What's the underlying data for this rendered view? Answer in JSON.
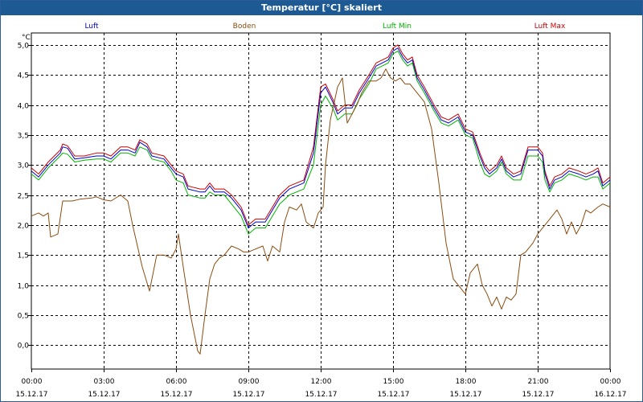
{
  "window": {
    "title": "Temperatur [°C] skaliert"
  },
  "chart_data": {
    "type": "line",
    "title": "Temperatur [°C] skaliert",
    "ylabel": "°C",
    "xlabel": "",
    "ylim": [
      -0.4,
      5.2
    ],
    "xlim": [
      0,
      24
    ],
    "grid": true,
    "y_ticks": [
      "5,0",
      "4,5",
      "4,0",
      "3,5",
      "3,0",
      "2,5",
      "2,0",
      "1,5",
      "1,0",
      "0,5",
      "0,0"
    ],
    "y_tick_values": [
      5.0,
      4.5,
      4.0,
      3.5,
      3.0,
      2.5,
      2.0,
      1.5,
      1.0,
      0.5,
      0.0
    ],
    "x_ticks": [
      {
        "time": "00:00",
        "date": "15.12.17"
      },
      {
        "time": "03:00",
        "date": "15.12.17"
      },
      {
        "time": "06:00",
        "date": "15.12.17"
      },
      {
        "time": "09:00",
        "date": "15.12.17"
      },
      {
        "time": "12:00",
        "date": "15.12.17"
      },
      {
        "time": "15:00",
        "date": "15.12.17"
      },
      {
        "time": "18:00",
        "date": "15.12.17"
      },
      {
        "time": "21:00",
        "date": "15.12.17"
      },
      {
        "time": "00:00",
        "date": "16.12.17"
      }
    ],
    "x_tick_values": [
      0,
      3,
      6,
      9,
      12,
      15,
      18,
      21,
      24
    ],
    "legend": [
      "Luft",
      "Boden",
      "Luft Min",
      "Luft Max"
    ],
    "series": [
      {
        "name": "Luft Max",
        "color": "#cc0000",
        "x": [
          0,
          0.3,
          0.7,
          1.2,
          1.3,
          1.5,
          1.8,
          2.2,
          2.7,
          3.0,
          3.3,
          3.7,
          4.0,
          4.3,
          4.5,
          4.8,
          5.0,
          5.5,
          5.8,
          6.0,
          6.3,
          6.5,
          7.0,
          7.2,
          7.4,
          7.6,
          8.0,
          8.3,
          8.7,
          9.0,
          9.3,
          9.7,
          10.3,
          10.7,
          11.3,
          11.7,
          12.0,
          12.2,
          12.5,
          12.7,
          13.0,
          13.3,
          13.6,
          14.0,
          14.3,
          14.8,
          15.0,
          15.2,
          15.4,
          15.6,
          15.8,
          16.0,
          16.3,
          16.7,
          17.0,
          17.3,
          17.7,
          18.0,
          18.3,
          18.6,
          18.8,
          19.0,
          19.3,
          19.5,
          19.7,
          20.0,
          20.3,
          20.6,
          21.0,
          21.2,
          21.3,
          21.5,
          21.7,
          22.0,
          22.3,
          22.7,
          23.0,
          23.3,
          23.5,
          23.7,
          24.0
        ],
        "values": [
          2.95,
          2.85,
          3.05,
          3.25,
          3.35,
          3.32,
          3.15,
          3.15,
          3.2,
          3.2,
          3.15,
          3.3,
          3.3,
          3.25,
          3.42,
          3.35,
          3.2,
          3.15,
          3.0,
          2.9,
          2.85,
          2.65,
          2.6,
          2.6,
          2.7,
          2.6,
          2.6,
          2.5,
          2.3,
          2.0,
          2.1,
          2.1,
          2.5,
          2.65,
          2.75,
          3.3,
          4.3,
          4.35,
          4.1,
          3.9,
          4.0,
          4.0,
          4.25,
          4.5,
          4.7,
          4.8,
          4.95,
          5.0,
          4.85,
          4.75,
          4.8,
          4.5,
          4.3,
          4.0,
          3.8,
          3.75,
          3.85,
          3.6,
          3.55,
          3.2,
          3.0,
          2.9,
          3.0,
          3.15,
          2.95,
          2.85,
          2.9,
          3.3,
          3.3,
          3.2,
          2.9,
          2.65,
          2.8,
          2.85,
          2.95,
          2.9,
          2.85,
          2.9,
          2.95,
          2.7,
          2.8
        ]
      },
      {
        "name": "Luft",
        "color": "#0000cc",
        "x": [
          0,
          0.3,
          0.7,
          1.2,
          1.3,
          1.5,
          1.8,
          2.2,
          2.7,
          3.0,
          3.3,
          3.7,
          4.0,
          4.3,
          4.5,
          4.8,
          5.0,
          5.5,
          5.8,
          6.0,
          6.3,
          6.5,
          7.0,
          7.2,
          7.4,
          7.6,
          8.0,
          8.3,
          8.7,
          9.0,
          9.3,
          9.7,
          10.3,
          10.7,
          11.3,
          11.7,
          12.0,
          12.2,
          12.5,
          12.7,
          13.0,
          13.3,
          13.6,
          14.0,
          14.3,
          14.8,
          15.0,
          15.2,
          15.4,
          15.6,
          15.8,
          16.0,
          16.3,
          16.7,
          17.0,
          17.3,
          17.7,
          18.0,
          18.3,
          18.6,
          18.8,
          19.0,
          19.3,
          19.5,
          19.7,
          20.0,
          20.3,
          20.6,
          21.0,
          21.2,
          21.3,
          21.5,
          21.7,
          22.0,
          22.3,
          22.7,
          23.0,
          23.3,
          23.5,
          23.7,
          24.0
        ],
        "values": [
          2.9,
          2.8,
          3.0,
          3.2,
          3.3,
          3.28,
          3.1,
          3.12,
          3.15,
          3.15,
          3.1,
          3.25,
          3.25,
          3.2,
          3.38,
          3.3,
          3.15,
          3.1,
          2.95,
          2.85,
          2.8,
          2.6,
          2.55,
          2.55,
          2.65,
          2.55,
          2.55,
          2.45,
          2.25,
          1.95,
          2.05,
          2.05,
          2.45,
          2.6,
          2.7,
          3.2,
          4.2,
          4.3,
          4.05,
          3.85,
          3.95,
          3.95,
          4.2,
          4.45,
          4.65,
          4.75,
          4.9,
          4.95,
          4.8,
          4.7,
          4.75,
          4.45,
          4.25,
          3.95,
          3.75,
          3.7,
          3.8,
          3.55,
          3.5,
          3.15,
          2.95,
          2.85,
          2.95,
          3.1,
          2.9,
          2.8,
          2.85,
          3.25,
          3.25,
          3.15,
          2.85,
          2.6,
          2.75,
          2.8,
          2.9,
          2.85,
          2.8,
          2.85,
          2.9,
          2.65,
          2.75
        ]
      },
      {
        "name": "Luft Min",
        "color": "#00b400",
        "x": [
          0,
          0.3,
          0.7,
          1.2,
          1.3,
          1.5,
          1.8,
          2.2,
          2.7,
          3.0,
          3.3,
          3.7,
          4.0,
          4.3,
          4.5,
          4.8,
          5.0,
          5.5,
          5.8,
          6.0,
          6.3,
          6.5,
          7.0,
          7.2,
          7.4,
          7.6,
          8.0,
          8.3,
          8.7,
          9.0,
          9.3,
          9.7,
          10.3,
          10.7,
          11.3,
          11.7,
          12.0,
          12.2,
          12.5,
          12.7,
          13.0,
          13.3,
          13.6,
          14.0,
          14.3,
          14.8,
          15.0,
          15.2,
          15.4,
          15.6,
          15.8,
          16.0,
          16.3,
          16.7,
          17.0,
          17.3,
          17.7,
          18.0,
          18.3,
          18.6,
          18.8,
          19.0,
          19.3,
          19.5,
          19.7,
          20.0,
          20.3,
          20.6,
          21.0,
          21.2,
          21.3,
          21.5,
          21.7,
          22.0,
          22.3,
          22.7,
          23.0,
          23.3,
          23.5,
          23.7,
          24.0
        ],
        "values": [
          2.85,
          2.75,
          2.95,
          3.15,
          3.2,
          3.18,
          3.05,
          3.08,
          3.1,
          3.1,
          3.05,
          3.2,
          3.2,
          3.15,
          3.3,
          3.25,
          3.1,
          3.05,
          2.9,
          2.75,
          2.7,
          2.5,
          2.45,
          2.45,
          2.55,
          2.5,
          2.5,
          2.35,
          2.15,
          1.85,
          1.95,
          1.95,
          2.35,
          2.5,
          2.6,
          3.0,
          4.0,
          4.15,
          3.95,
          3.75,
          3.85,
          3.85,
          4.1,
          4.35,
          4.6,
          4.7,
          4.85,
          4.9,
          4.75,
          4.65,
          4.7,
          4.4,
          4.2,
          3.9,
          3.7,
          3.65,
          3.75,
          3.5,
          3.45,
          3.05,
          2.85,
          2.8,
          2.9,
          3.05,
          2.85,
          2.75,
          2.75,
          3.15,
          3.15,
          3.05,
          2.75,
          2.55,
          2.7,
          2.75,
          2.85,
          2.8,
          2.75,
          2.8,
          2.8,
          2.6,
          2.7
        ]
      },
      {
        "name": "Boden",
        "color": "#8b4c0e",
        "x": [
          0,
          0.3,
          0.5,
          0.7,
          0.8,
          1.1,
          1.3,
          1.7,
          2.0,
          2.5,
          2.7,
          3.0,
          3.3,
          3.7,
          4.0,
          4.2,
          4.6,
          4.9,
          5.2,
          5.5,
          5.8,
          6.0,
          6.1,
          6.3,
          6.6,
          6.9,
          7.0,
          7.2,
          7.4,
          7.6,
          7.8,
          8.0,
          8.3,
          8.6,
          8.8,
          9.0,
          9.3,
          9.6,
          9.8,
          10.0,
          10.3,
          10.5,
          10.7,
          11.0,
          11.2,
          11.4,
          11.7,
          11.9,
          12.1,
          12.2,
          12.4,
          12.7,
          12.9,
          13.1,
          13.3,
          13.5,
          13.7,
          14.0,
          14.3,
          14.5,
          14.7,
          14.9,
          15.1,
          15.3,
          15.5,
          15.7,
          16.0,
          16.3,
          16.6,
          16.9,
          17.2,
          17.5,
          17.8,
          18.0,
          18.2,
          18.5,
          18.7,
          18.9,
          19.1,
          19.3,
          19.5,
          19.7,
          19.9,
          20.1,
          20.3,
          20.5,
          20.8,
          21.0,
          21.3,
          21.6,
          21.8,
          22.0,
          22.2,
          22.4,
          22.6,
          22.8,
          23.0,
          23.2,
          23.5,
          23.7,
          24.0
        ],
        "values": [
          2.15,
          2.2,
          2.15,
          2.2,
          1.8,
          1.85,
          2.4,
          2.4,
          2.43,
          2.45,
          2.47,
          2.42,
          2.4,
          2.5,
          2.4,
          2.0,
          1.3,
          0.9,
          1.5,
          1.5,
          1.45,
          1.6,
          1.85,
          1.3,
          0.5,
          -0.1,
          -0.15,
          0.5,
          1.1,
          1.35,
          1.45,
          1.5,
          1.65,
          1.6,
          1.55,
          1.55,
          1.6,
          1.65,
          1.4,
          1.65,
          1.55,
          2.05,
          2.3,
          2.25,
          2.35,
          2.05,
          1.95,
          2.2,
          2.3,
          3.0,
          3.75,
          4.3,
          4.45,
          3.7,
          3.85,
          4.0,
          4.2,
          4.4,
          4.4,
          4.45,
          4.6,
          4.45,
          4.4,
          4.45,
          4.35,
          4.35,
          4.2,
          4.05,
          3.6,
          2.7,
          1.7,
          1.1,
          0.95,
          0.85,
          1.2,
          1.35,
          1.0,
          0.85,
          0.65,
          0.8,
          0.6,
          0.8,
          0.75,
          0.85,
          1.5,
          1.55,
          1.7,
          1.85,
          2.0,
          2.15,
          2.25,
          2.1,
          1.85,
          2.05,
          1.85,
          2.0,
          2.25,
          2.2,
          2.3,
          2.35,
          2.3
        ]
      }
    ]
  }
}
